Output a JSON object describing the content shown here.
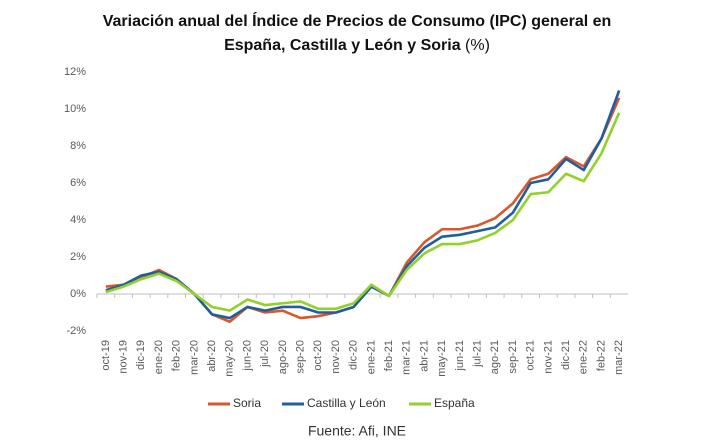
{
  "chart_data": {
    "type": "line",
    "title": [
      "Variación anual del Índice de Precios de Consumo (IPC) general en",
      "España, Castilla y León y Soria"
    ],
    "title_suffix": "(%)",
    "source": "Fuente: Afi, INE",
    "categories": [
      "oct-19",
      "nov-19",
      "dic-19",
      "ene-20",
      "feb-20",
      "mar-20",
      "abr-20",
      "may-20",
      "jun-20",
      "jul-20",
      "ago-20",
      "sep-20",
      "oct-20",
      "nov-20",
      "dic-20",
      "ene-21",
      "feb-21",
      "mar-21",
      "abr-21",
      "may-21",
      "jun-21",
      "jul-21",
      "ago-21",
      "sep-21",
      "oct-21",
      "nov-21",
      "dic-21",
      "ene-22",
      "feb-22",
      "mar-22"
    ],
    "series": [
      {
        "name": "Soria",
        "color": "#d9572b",
        "values": [
          0.4,
          0.5,
          0.9,
          1.3,
          0.8,
          0.0,
          -1.1,
          -1.5,
          -0.7,
          -1.0,
          -0.9,
          -1.3,
          -1.2,
          -1.0,
          -0.7,
          0.4,
          -0.1,
          1.7,
          2.8,
          3.5,
          3.5,
          3.7,
          4.1,
          4.9,
          6.2,
          6.5,
          7.4,
          6.9,
          8.4,
          10.6
        ]
      },
      {
        "name": "Castilla y León",
        "color": "#1f5f9e",
        "values": [
          0.2,
          0.5,
          1.0,
          1.2,
          0.8,
          0.0,
          -1.1,
          -1.3,
          -0.7,
          -0.9,
          -0.7,
          -0.7,
          -1.0,
          -1.0,
          -0.7,
          0.4,
          -0.1,
          1.5,
          2.5,
          3.1,
          3.2,
          3.4,
          3.6,
          4.4,
          6.0,
          6.2,
          7.3,
          6.7,
          8.4,
          11.0
        ]
      },
      {
        "name": "España",
        "color": "#92d12a",
        "values": [
          0.1,
          0.4,
          0.8,
          1.1,
          0.7,
          0.0,
          -0.7,
          -0.9,
          -0.3,
          -0.6,
          -0.5,
          -0.4,
          -0.8,
          -0.8,
          -0.5,
          0.5,
          -0.1,
          1.3,
          2.2,
          2.7,
          2.7,
          2.9,
          3.3,
          4.0,
          5.4,
          5.5,
          6.5,
          6.1,
          7.6,
          9.8
        ]
      }
    ],
    "ylim": [
      -2,
      12
    ],
    "yticks": [
      {
        "value": -2,
        "label": "-2%"
      },
      {
        "value": 0,
        "label": "0%"
      },
      {
        "value": 2,
        "label": "2%"
      },
      {
        "value": 4,
        "label": "4%"
      },
      {
        "value": 6,
        "label": "6%"
      },
      {
        "value": 8,
        "label": "8%"
      },
      {
        "value": 10,
        "label": "10%"
      },
      {
        "value": 12,
        "label": "12%"
      }
    ],
    "grid": false
  }
}
